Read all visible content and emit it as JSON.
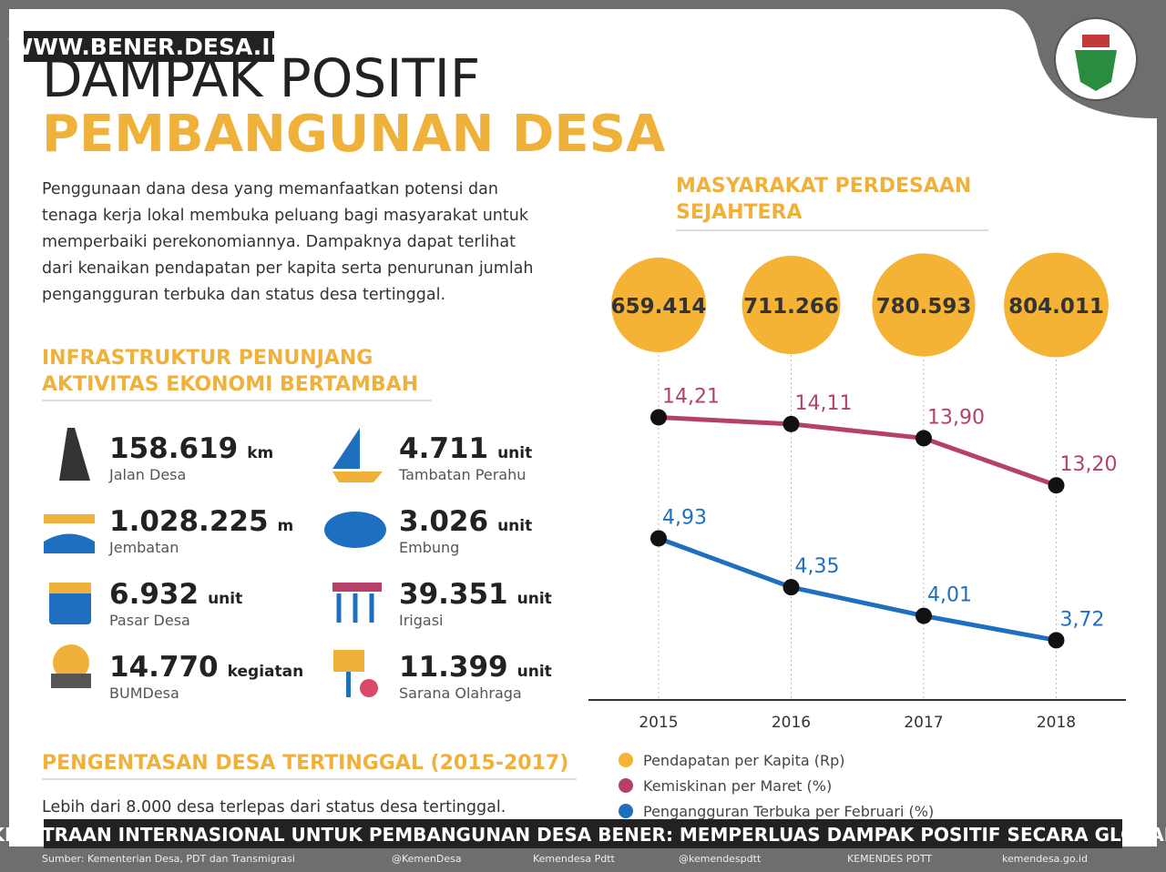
{
  "watermark": "WWW.BENER.DESA.ID",
  "title": [
    "DAMPAK POSITIF",
    "PEMBANGUNAN DESA"
  ],
  "intro": [
    "Penggunaan dana desa yang memanfaatkan potensi dan",
    "tenaga kerja lokal membuka peluang bagi masyarakat untuk",
    "memperbaiki perekonomiannya. Dampaknya dapat terlihat",
    "dari kenaikan pendapatan per kapita serta penurunan jumlah",
    "pengangguran terbuka dan status desa tertinggal."
  ],
  "infra_heading": [
    "INFRASTRUKTUR PENUNJANG",
    "AKTIVITAS EKONOMI BERTAMBAH"
  ],
  "stats": [
    {
      "value": "158.619",
      "unit": "km",
      "label": "Jalan Desa"
    },
    {
      "value": "1.028.225",
      "unit": "m",
      "label": "Jembatan"
    },
    {
      "value": "6.932",
      "unit": "unit",
      "label": "Pasar Desa"
    },
    {
      "value": "14.770",
      "unit": "kegiatan",
      "label": "BUMDesa"
    },
    {
      "value": "4.711",
      "unit": "unit",
      "label": "Tambatan Perahu"
    },
    {
      "value": "3.026",
      "unit": "unit",
      "label": "Embung"
    },
    {
      "value": "39.351",
      "unit": "unit",
      "label": "Irigasi"
    },
    {
      "value": "11.399",
      "unit": "unit",
      "label": "Sarana Olahraga"
    }
  ],
  "tertinggal": {
    "heading": "PENGENTASAN DESA TERTINGGAL (2015-2017)",
    "text": "Lebih dari 8.000 desa terlepas dari status desa tertinggal."
  },
  "chart_data": {
    "type": "line",
    "title": [
      "MASYARAKAT PERDESAAN",
      "SEJAHTERA"
    ],
    "categories": [
      "2015",
      "2016",
      "2017",
      "2018"
    ],
    "ylim": [
      10,
      15
    ],
    "y2lim": [
      3,
      7
    ],
    "series": [
      {
        "name": "Pendapatan per Kapita (Rp)",
        "color": "#f5b335",
        "axis": "size",
        "values": [
          659414,
          711266,
          780593,
          804011
        ],
        "value_labels": [
          "659.414",
          "711.266",
          "780.593",
          "804.011"
        ]
      },
      {
        "name": "Kemiskinan per Maret (%)",
        "color": "#b5416b",
        "axis": "y",
        "values": [
          14.21,
          14.11,
          13.9,
          13.2
        ],
        "value_labels": [
          "14,21",
          "14,11",
          "13,90",
          "13,20"
        ]
      },
      {
        "name": "Pengangguran Terbuka per Februari (%)",
        "color": "#1f6fc0",
        "axis": "y2",
        "values": [
          4.93,
          4.35,
          4.01,
          3.72
        ],
        "value_labels": [
          "4,93",
          "4,35",
          "4,01",
          "3,72"
        ]
      }
    ]
  },
  "caption": "KEMITRAAN INTERNASIONAL UNTUK PEMBANGUNAN DESA BENER: MEMPERLUAS DAMPAK POSITIF SECARA GLOBAL",
  "footer": [
    "Sumber: Kementerian Desa, PDT dan Transmigrasi",
    "@KemenDesa",
    "Kemendesa Pdtt",
    "@kemendespdtt",
    "KEMENDES PDTT",
    "kemendesa.go.id"
  ]
}
